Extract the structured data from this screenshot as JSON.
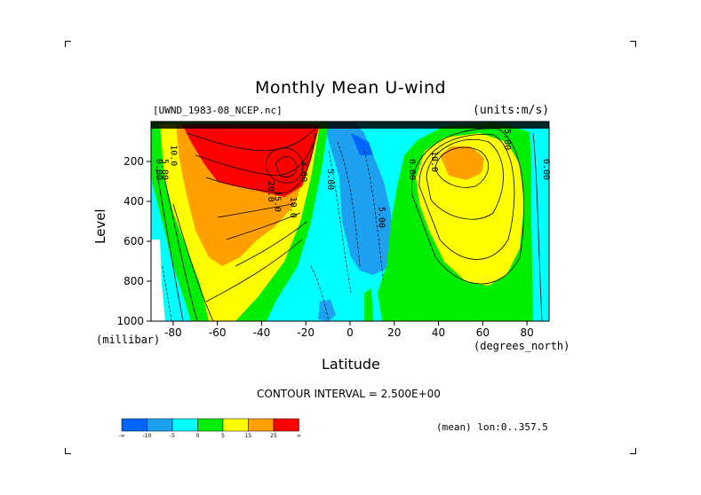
{
  "chart_data": {
    "type": "heatmap",
    "title": "Monthly Mean U-wind",
    "dataset_label": "[UWND_1983-08_NCEP.nc]",
    "units_label": "(units:m/s)",
    "xlabel": "Latitude",
    "xlabel_units": "(degrees_north)",
    "ylabel": "Level",
    "ylabel_units": "(millibar)",
    "xlim": [
      -90,
      90
    ],
    "ylim": [
      1000,
      0
    ],
    "x_ticks": [
      -80,
      -60,
      -40,
      -20,
      0,
      20,
      40,
      60,
      80
    ],
    "x_tick_labels": [
      "-80",
      "-60",
      "-40",
      "-20",
      "0",
      "20",
      "40",
      "60",
      "80"
    ],
    "y_ticks": [
      200,
      400,
      600,
      800,
      1000
    ],
    "y_tick_labels": [
      "200",
      "400",
      "600",
      "800",
      "1000"
    ],
    "contour_interval_text": "CONTOUR INTERVAL = 2.500E+00",
    "footer_text": "(mean) lon:0..357.5",
    "contour_labels": [
      {
        "text": "10.0",
        "x": -81,
        "y": 170
      },
      {
        "text": "5.00",
        "x": -85,
        "y": 240
      },
      {
        "text": "0.00",
        "x": -90,
        "y": 240
      },
      {
        "text": "20.0",
        "x": -37,
        "y": 350
      },
      {
        "text": "15.0",
        "x": -34,
        "y": 400
      },
      {
        "text": "10.0",
        "x": -27,
        "y": 430
      },
      {
        "text": "3.00",
        "x": -22,
        "y": 250
      },
      {
        "text": "5.00",
        "x": -10,
        "y": 290
      },
      {
        "text": "5.00",
        "x": 13,
        "y": 480
      },
      {
        "text": "0.00",
        "x": 27,
        "y": 240
      },
      {
        "text": "10.0",
        "x": 37,
        "y": 200
      },
      {
        "text": "5.00",
        "x": 70,
        "y": 90
      },
      {
        "text": "0.00",
        "x": 88,
        "y": 240
      }
    ],
    "colorbar": {
      "levels": [
        "-∞",
        "-10",
        "-5",
        "0",
        "5",
        "15",
        "25",
        "∞"
      ],
      "colors": [
        "#0066ff",
        "#1ea0f0",
        "#00ffff",
        "#00ee00",
        "#ffff00",
        "#ffa000",
        "#ff0000"
      ]
    }
  }
}
